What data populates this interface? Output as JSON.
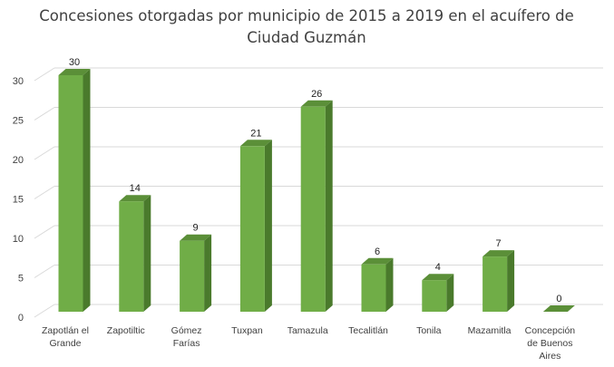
{
  "chart_data": {
    "type": "bar",
    "style": "3d-column",
    "title_lines": [
      "Concesiones otorgadas por municipio de 2015 a 2019 en el acuífero de",
      "Ciudad Guzmán"
    ],
    "categories": [
      [
        "Zapotlán el",
        "Grande"
      ],
      [
        "Zapotiltic"
      ],
      [
        "Gómez",
        "Farías"
      ],
      [
        "Tuxpan"
      ],
      [
        "Tamazula"
      ],
      [
        "Tecalitlán"
      ],
      [
        "Tonila"
      ],
      [
        "Mazamitla"
      ],
      [
        "Concepción",
        "de Buenos",
        "Aires"
      ]
    ],
    "values": [
      30,
      14,
      9,
      21,
      26,
      6,
      4,
      7,
      0
    ],
    "data_labels": [
      "30",
      "14",
      "9",
      "21",
      "26",
      "6",
      "4",
      "7",
      "0"
    ],
    "yticks": [
      "0",
      "5",
      "10",
      "15",
      "20",
      "25",
      "30"
    ],
    "ylim": [
      0,
      30
    ],
    "grid": true,
    "legend": "none",
    "colors": {
      "front": "#70ad47",
      "side": "#4a7a2c",
      "top": "#5b8f38",
      "grid": "#d9d9d9"
    }
  }
}
